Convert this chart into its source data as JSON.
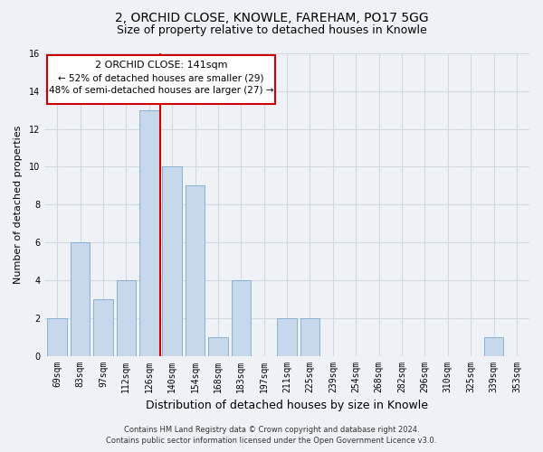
{
  "title": "2, ORCHID CLOSE, KNOWLE, FAREHAM, PO17 5GG",
  "subtitle": "Size of property relative to detached houses in Knowle",
  "xlabel": "Distribution of detached houses by size in Knowle",
  "ylabel": "Number of detached properties",
  "bar_labels": [
    "69sqm",
    "83sqm",
    "97sqm",
    "112sqm",
    "126sqm",
    "140sqm",
    "154sqm",
    "168sqm",
    "183sqm",
    "197sqm",
    "211sqm",
    "225sqm",
    "239sqm",
    "254sqm",
    "268sqm",
    "282sqm",
    "296sqm",
    "310sqm",
    "325sqm",
    "339sqm",
    "353sqm"
  ],
  "bar_values": [
    2,
    6,
    3,
    4,
    13,
    10,
    9,
    1,
    4,
    0,
    2,
    2,
    0,
    0,
    0,
    0,
    0,
    0,
    0,
    1,
    0
  ],
  "bar_color": "#c8d8ec",
  "bar_edge_color": "#8ab0cc",
  "vline_color": "#cc0000",
  "ylim": [
    0,
    16
  ],
  "yticks": [
    0,
    2,
    4,
    6,
    8,
    10,
    12,
    14,
    16
  ],
  "annotation_title": "2 ORCHID CLOSE: 141sqm",
  "annotation_line1": "← 52% of detached houses are smaller (29)",
  "annotation_line2": "48% of semi-detached houses are larger (27) →",
  "annotation_box_color": "#ffffff",
  "annotation_box_edge": "#cc0000",
  "footer_line1": "Contains HM Land Registry data © Crown copyright and database right 2024.",
  "footer_line2": "Contains public sector information licensed under the Open Government Licence v3.0.",
  "bg_color": "#eef2f7",
  "grid_color": "#d0d8e4",
  "title_fontsize": 10,
  "subtitle_fontsize": 9,
  "xlabel_fontsize": 9,
  "ylabel_fontsize": 8,
  "tick_fontsize": 7,
  "footer_fontsize": 6,
  "ann_title_fontsize": 8,
  "ann_text_fontsize": 7.5
}
